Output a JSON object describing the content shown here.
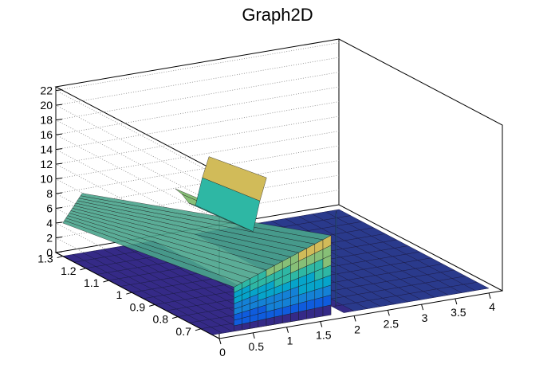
{
  "chart_data": {
    "type": "surface",
    "title": "Graph2D",
    "xlabel": "",
    "ylabel": "",
    "zlabel": "",
    "x_ticks": [
      "0",
      "0.5",
      "1",
      "1.5",
      "2",
      "2.5",
      "3",
      "3.5",
      "4"
    ],
    "y_ticks": [
      "0.7",
      "0.8",
      "0.9",
      "1",
      "1.1",
      "1.2",
      "1.3"
    ],
    "z_ticks": [
      "0",
      "2",
      "4",
      "6",
      "8",
      "10",
      "12",
      "14",
      "16",
      "18",
      "20",
      "22"
    ],
    "xlim": [
      0,
      4.2
    ],
    "ylim": [
      0.62,
      1.33
    ],
    "zlim": [
      0,
      22.5
    ],
    "grid": true,
    "palette": [
      "#352a87",
      "#0f5cdd",
      "#1481d6",
      "#06a4ca",
      "#2eb7a4",
      "#87bf77",
      "#d1bb59",
      "#fec832",
      "#f9fb0e"
    ],
    "surface_x": [
      0,
      0.15,
      0.3,
      0.45,
      0.6,
      0.75,
      0.9,
      1.05,
      1.2,
      1.35,
      1.5,
      1.65,
      1.8,
      1.95,
      2.1,
      2.3,
      2.5,
      2.7,
      2.9,
      3.1,
      3.3,
      3.5,
      3.7,
      3.9,
      4.1
    ],
    "surface_y": [
      0.65,
      0.7,
      0.75,
      0.8,
      0.85,
      0.9,
      0.95,
      1.0,
      1.05,
      1.1,
      1.15,
      1.2,
      1.25,
      1.3
    ],
    "surface_z": [
      [
        0,
        0,
        0,
        0,
        0,
        0,
        0,
        0,
        0,
        0,
        0,
        0,
        0,
        0
      ],
      [
        0,
        0,
        0,
        0,
        0,
        0,
        0,
        0,
        0,
        0,
        0,
        0,
        0,
        0
      ],
      [
        0,
        0,
        0,
        0,
        0,
        0,
        0,
        0,
        0,
        0,
        0,
        0,
        0,
        0
      ],
      [
        0,
        0,
        0,
        0,
        0,
        0,
        0,
        0,
        0,
        0,
        0,
        0,
        0,
        0
      ],
      [
        0,
        0,
        0,
        0,
        0,
        0,
        0,
        0,
        0,
        0,
        0,
        0,
        0,
        0
      ],
      [
        0,
        0,
        0,
        0,
        0,
        0,
        0,
        0,
        0,
        0,
        0,
        0,
        0,
        0
      ],
      [
        0,
        0,
        0,
        0,
        0,
        0,
        0,
        0,
        0,
        0,
        0,
        0,
        0,
        0
      ],
      [
        0,
        0,
        0,
        0,
        0,
        0,
        0,
        0,
        0,
        0,
        0,
        0,
        0,
        0
      ],
      [
        0,
        0,
        0,
        0,
        0,
        0,
        0,
        0,
        0,
        0,
        0,
        0,
        0,
        0
      ],
      [
        0,
        0,
        0,
        0,
        0,
        0,
        0,
        0,
        0,
        0,
        0,
        0,
        0,
        0
      ],
      [
        0,
        0,
        0,
        0,
        0,
        0,
        0,
        0,
        0,
        0,
        0,
        0,
        0,
        0
      ],
      [
        0,
        0,
        0,
        0,
        0,
        0,
        0,
        0,
        0,
        0,
        0,
        0,
        0,
        0
      ],
      [
        0,
        0,
        0,
        0,
        0,
        0,
        0,
        0,
        0,
        0,
        0,
        0,
        0,
        0
      ],
      [
        0,
        0,
        0,
        0,
        0,
        0,
        0,
        0,
        0,
        0,
        0,
        0,
        0,
        0
      ],
      [
        0,
        0,
        0,
        0,
        0,
        0,
        0,
        0,
        0,
        0,
        0,
        0,
        0,
        0
      ],
      [
        0,
        0,
        0,
        0,
        0,
        0,
        0,
        0,
        0,
        0,
        0,
        0,
        0,
        0
      ],
      [
        0,
        0,
        0,
        0,
        0,
        0,
        0,
        0,
        0,
        0,
        0,
        0,
        0,
        0
      ],
      [
        0,
        0,
        0,
        0,
        0,
        0,
        0,
        0,
        0,
        0,
        0,
        0,
        0,
        0
      ],
      [
        0,
        0,
        0,
        0,
        0,
        0,
        0,
        0,
        0,
        0,
        0,
        0,
        0,
        0
      ],
      [
        0,
        0,
        0,
        0,
        0,
        0,
        0,
        0,
        0,
        0,
        0,
        0,
        0,
        0
      ],
      [
        0,
        0,
        0,
        0,
        0,
        0,
        0,
        0,
        0,
        0,
        0,
        0,
        0,
        0
      ],
      [
        0,
        0,
        0,
        0,
        0,
        0,
        0,
        0,
        0,
        0,
        0,
        0,
        0,
        0
      ],
      [
        0,
        0,
        0,
        0,
        0,
        0,
        0,
        0,
        0,
        0,
        0,
        0,
        0,
        0
      ],
      [
        0,
        0,
        0,
        0,
        0,
        0,
        0,
        0,
        0,
        0,
        0,
        0,
        0,
        0
      ],
      [
        0,
        0,
        0,
        0,
        0,
        0,
        0,
        0,
        0,
        0,
        0,
        0,
        0,
        0
      ]
    ],
    "wall_x": [
      0,
      0.12,
      0.24,
      0.36,
      0.48,
      0.6,
      0.72,
      0.84,
      0.96,
      1.08,
      1.2,
      1.32,
      1.44
    ],
    "wall_z": [
      6.0,
      6.4,
      6.8,
      7.2,
      7.6,
      8.0,
      8.4,
      8.8,
      9.2,
      9.6,
      10.0,
      10.4,
      10.8
    ],
    "wall_y_front": 0.65,
    "wall_y_back": 1.3,
    "bump_x": [
      1.5,
      1.6,
      1.7,
      1.8,
      1.9,
      2.0
    ],
    "bump_z": [
      8.5,
      7.5,
      6.0,
      5.5,
      9.5,
      12.5
    ]
  }
}
